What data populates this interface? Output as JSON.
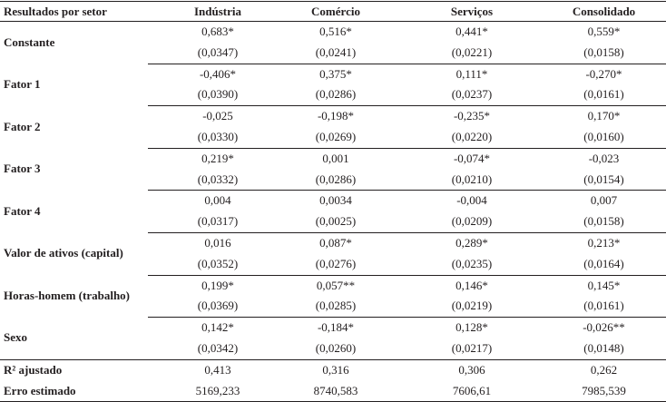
{
  "header": {
    "label": "Resultados por setor",
    "columns": [
      "Indústria",
      "Comércio",
      "Serviços",
      "Consolidado"
    ]
  },
  "rows": [
    {
      "label": "Constante",
      "coef": [
        "0,683*",
        "0,516*",
        "0,441*",
        "0,559*"
      ],
      "se": [
        "(0,0347)",
        "(0,0241)",
        "(0,0221)",
        "(0,0158)"
      ]
    },
    {
      "label": "Fator 1",
      "coef": [
        "-0,406*",
        "0,375*",
        "0,111*",
        "-0,270*"
      ],
      "se": [
        "(0,0390)",
        "(0,0286)",
        "(0,0237)",
        "(0,0161)"
      ]
    },
    {
      "label": "Fator 2",
      "coef": [
        "-0,025",
        "-0,198*",
        "-0,235*",
        "0,170*"
      ],
      "se": [
        "(0,0330)",
        "(0,0269)",
        "(0,0220)",
        "(0,0160)"
      ]
    },
    {
      "label": "Fator 3",
      "coef": [
        "0,219*",
        "0,001",
        "-0,074*",
        "-0,023"
      ],
      "se": [
        "(0,0332)",
        "(0,0286)",
        "(0,0210)",
        "(0,0154)"
      ]
    },
    {
      "label": "Fator 4",
      "coef": [
        "0,004",
        "0,0034",
        "-0,004",
        "0,007"
      ],
      "se": [
        "(0,0317)",
        "(0,0025)",
        "(0,0209)",
        "(0,0158)"
      ]
    },
    {
      "label": "Valor de ativos (capital)",
      "coef": [
        "0,016",
        "0,087*",
        "0,289*",
        "0,213*"
      ],
      "se": [
        "(0,0352)",
        "(0,0276)",
        "(0,0235)",
        "(0,0164)"
      ]
    },
    {
      "label": "Horas-homem (trabalho)",
      "coef": [
        "0,199*",
        "0,057**",
        "0,146*",
        "0,145*"
      ],
      "se": [
        "(0,0369)",
        "(0,0285)",
        "(0,0219)",
        "(0,0161)"
      ]
    },
    {
      "label": "Sexo",
      "coef": [
        "0,142*",
        "-0,184*",
        "0,128*",
        "-0,026**"
      ],
      "se": [
        "(0,0342)",
        "(0,0260)",
        "(0,0217)",
        "(0,0148)"
      ]
    }
  ],
  "stats": [
    {
      "label": "R² ajustado",
      "values": [
        "0,413",
        "0,316",
        "0,306",
        "0,262"
      ]
    },
    {
      "label": "Erro estimado",
      "values": [
        "5169,233",
        "8740,583",
        "7606,61",
        "7985,539"
      ]
    }
  ]
}
